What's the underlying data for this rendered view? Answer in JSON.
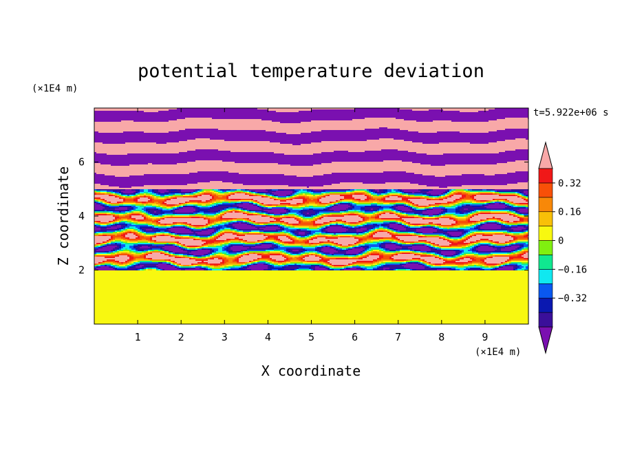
{
  "chart_data": {
    "type": "heatmap",
    "title": "potential temperature deviation",
    "xlabel": "X coordinate",
    "ylabel": "Z coordinate",
    "x_unit": "(×1E4 m)",
    "y_unit": "(×1E4 m)",
    "time_label": "t=5.922e+06 s",
    "xlim": [
      0,
      10
    ],
    "ylim": [
      0,
      8
    ],
    "x_ticks": [
      "1",
      "2",
      "3",
      "4",
      "5",
      "6",
      "7",
      "8",
      "9"
    ],
    "y_ticks": [
      "2",
      "4",
      "6"
    ],
    "colorbar": {
      "levels": [
        -0.48,
        -0.4,
        -0.32,
        -0.24,
        -0.16,
        -0.08,
        0,
        0.08,
        0.16,
        0.24,
        0.32,
        0.4,
        0.48
      ],
      "labels": [
        "0.32",
        "0.16",
        "0",
        "−0.16",
        "−0.32"
      ],
      "label_values": [
        0.32,
        0.16,
        0,
        -0.16,
        -0.32
      ],
      "colors": [
        "#7a10b0",
        "#3a0f9a",
        "#0a18b0",
        "#0a58f0",
        "#10e8f0",
        "#10e890",
        "#80f010",
        "#f8f810",
        "#f8c008",
        "#f88808",
        "#f85008",
        "#f01818",
        "#f8a8a8"
      ]
    },
    "regions": [
      {
        "description": "upper band z>5",
        "pattern": "alternating layers of extreme positive (pink) and extreme negative (purple)"
      },
      {
        "description": "middle band 2<z<5",
        "pattern": "turbulent mixed layers spanning full color range"
      },
      {
        "description": "lower band z<2",
        "pattern": "near-zero deviation, light green with green patches"
      }
    ]
  }
}
